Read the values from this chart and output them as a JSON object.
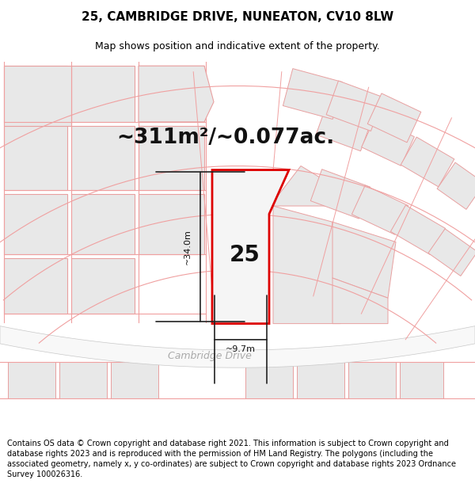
{
  "title": "25, CAMBRIDGE DRIVE, NUNEATON, CV10 8LW",
  "subtitle": "Map shows position and indicative extent of the property.",
  "area_text": "~311m²/~0.077ac.",
  "label_number": "25",
  "dim_width": "~9.7m",
  "dim_height": "~34.0m",
  "road_label": "Cambridge Drive",
  "footer": "Contains OS data © Crown copyright and database right 2021. This information is subject to Crown copyright and database rights 2023 and is reproduced with the permission of HM Land Registry. The polygons (including the associated geometry, namely x, y co-ordinates) are subject to Crown copyright and database rights 2023 Ordnance Survey 100026316.",
  "map_bg": "#f8f8f8",
  "plot_fill": "#f0f0f0",
  "plot_outline_color": "#dd0000",
  "neighbor_fill": "#e8e8e8",
  "neighbor_outline": "#e8a0a0",
  "road_fill": "#ffffff",
  "road_outline": "#c8c8c8",
  "cadastral_color": "#f0a0a0",
  "dim_line_color": "#222222",
  "title_fontsize": 11,
  "subtitle_fontsize": 9,
  "area_fontsize": 19,
  "label_fontsize": 20,
  "road_fontsize": 9,
  "footer_fontsize": 7
}
